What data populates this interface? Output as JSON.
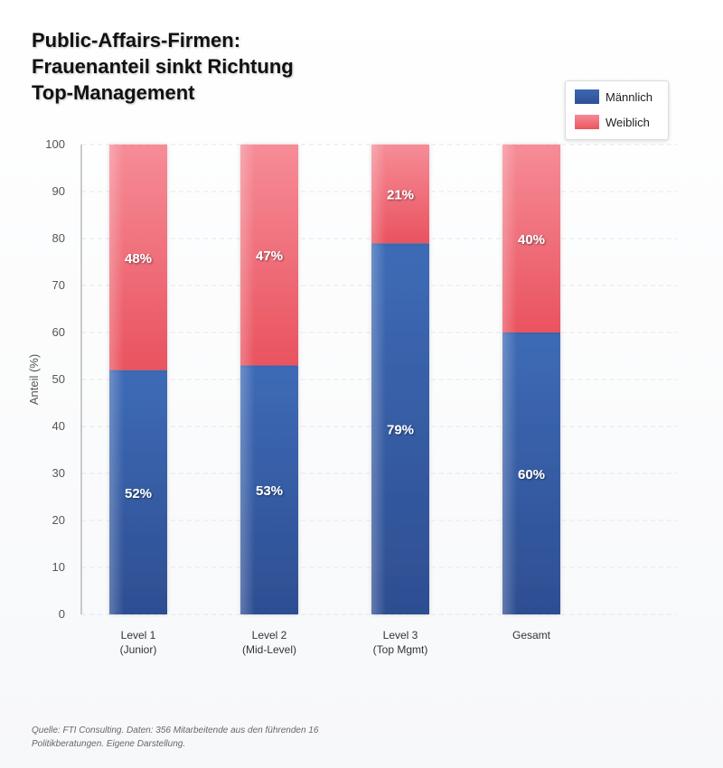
{
  "title": "Public-Affairs-Firmen:\nFrauenanteil sinkt Richtung\nTop-Management",
  "source": "Quelle: FTI Consulting. Daten: 356 Mitarbeitende aus den führenden 16 Politikberatungen. Eigene Darstellung.",
  "colors": {
    "maennlich": "#3a63ad",
    "weiblich": "#ee5a66"
  },
  "chart_data": {
    "type": "bar",
    "stacked": true,
    "categories": [
      "Level 1\n(Junior)",
      "Level 2\n(Mid-Level)",
      "Level 3\n(Top Mgmt)",
      "Gesamt"
    ],
    "series": [
      {
        "name": "Männlich",
        "values": [
          52,
          53,
          79,
          60
        ],
        "labels": [
          "52%",
          "53%",
          "79%",
          "60%"
        ]
      },
      {
        "name": "Weiblich",
        "values": [
          48,
          47,
          21,
          40
        ],
        "labels": [
          "48%",
          "47%",
          "21%",
          "40%"
        ]
      }
    ],
    "ylabel": "Anteil (%)",
    "xlabel": "",
    "ylim": [
      0,
      100
    ],
    "yticks": [
      0,
      10,
      20,
      30,
      40,
      50,
      60,
      70,
      80,
      90,
      100
    ],
    "grid": true,
    "legend": "top-right"
  }
}
